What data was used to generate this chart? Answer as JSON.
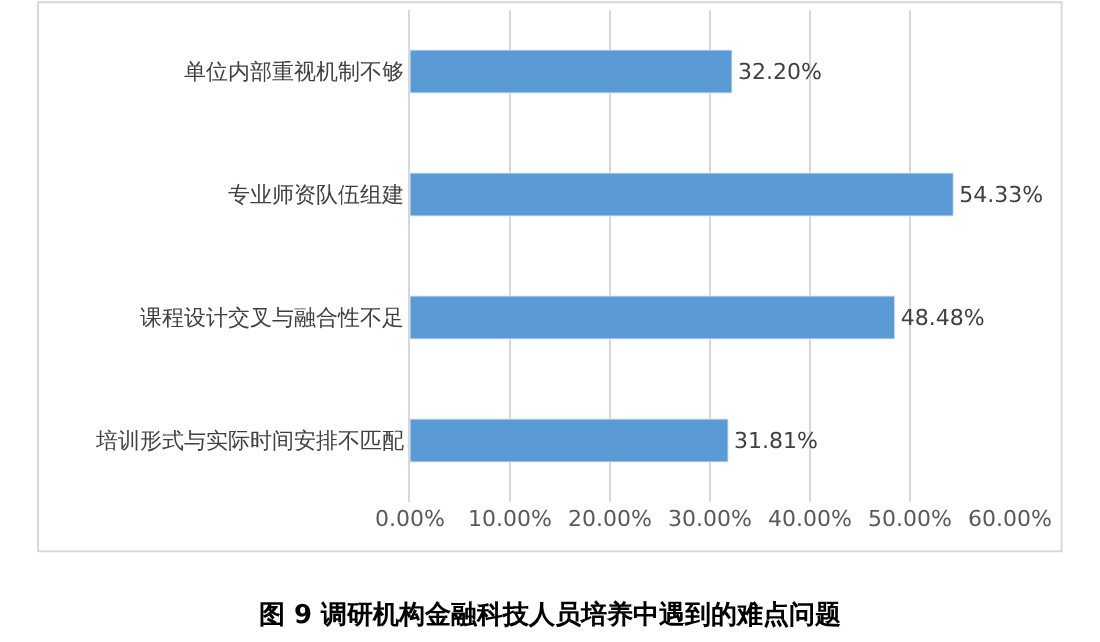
{
  "chart_data": {
    "type": "bar",
    "orientation": "horizontal",
    "title": "图 9 调研机构金融科技人员培养中遇到的难点问题",
    "categories": [
      "单位内部重视机制不够",
      "专业师资队伍组建",
      "课程设计交叉与融合性不足",
      "培训形式与实际时间安排不匹配"
    ],
    "values": [
      32.2,
      54.33,
      48.48,
      31.81
    ],
    "color": "#5b9bd5",
    "value_labels": [
      "32.20%",
      "54.33%",
      "48.48%",
      "31.81%"
    ],
    "xlim": [
      0,
      60
    ],
    "xticks": [
      {
        "value": 0,
        "label": "0.00%"
      },
      {
        "value": 10,
        "label": "10.00%"
      },
      {
        "value": 20,
        "label": "20.00%"
      },
      {
        "value": 30,
        "label": "30.00%"
      },
      {
        "value": 40,
        "label": "40.00%"
      },
      {
        "value": 50,
        "label": "50.00%"
      },
      {
        "value": 60,
        "label": "60.00%"
      }
    ],
    "grid": "x"
  }
}
